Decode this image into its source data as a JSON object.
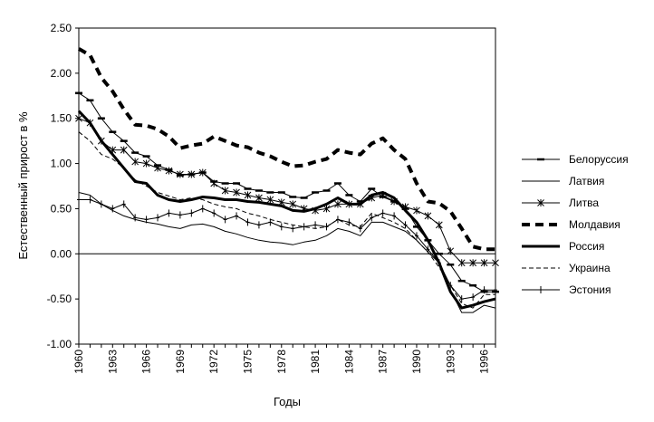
{
  "chart_data": {
    "type": "line",
    "title": "",
    "xlabel": "Годы",
    "ylabel": "Естественный прирост в %",
    "xlim": [
      1960,
      1997
    ],
    "ylim": [
      -1.0,
      2.5
    ],
    "yticks": [
      "2.50",
      "2.00",
      "1.50",
      "1.00",
      "0.50",
      "0.00",
      "-0.50",
      "-1.00"
    ],
    "xticks": [
      "1960",
      "1963",
      "1966",
      "1969",
      "1972",
      "1975",
      "1978",
      "1981",
      "1984",
      "1987",
      "1990",
      "1993",
      "1996"
    ],
    "grid": false,
    "legend_position": "right",
    "x": [
      1960,
      1961,
      1962,
      1963,
      1964,
      1965,
      1966,
      1967,
      1968,
      1969,
      1970,
      1971,
      1972,
      1973,
      1974,
      1975,
      1976,
      1977,
      1978,
      1979,
      1980,
      1981,
      1982,
      1983,
      1984,
      1985,
      1986,
      1987,
      1988,
      1989,
      1990,
      1991,
      1992,
      1993,
      1994,
      1995,
      1996,
      1997
    ],
    "series": [
      {
        "name": "Белоруссия",
        "style": "thin-dash-marker",
        "values": [
          1.78,
          1.7,
          1.5,
          1.35,
          1.25,
          1.12,
          1.08,
          0.98,
          0.93,
          0.87,
          0.88,
          0.9,
          0.8,
          0.78,
          0.78,
          0.72,
          0.7,
          0.68,
          0.68,
          0.63,
          0.62,
          0.68,
          0.7,
          0.78,
          0.65,
          0.58,
          0.72,
          0.63,
          0.58,
          0.5,
          0.3,
          0.15,
          0.0,
          -0.12,
          -0.3,
          -0.35,
          -0.42,
          -0.42
        ]
      },
      {
        "name": "Латвия",
        "style": "thin",
        "values": [
          0.68,
          0.65,
          0.55,
          0.48,
          0.42,
          0.38,
          0.35,
          0.33,
          0.3,
          0.28,
          0.32,
          0.33,
          0.3,
          0.25,
          0.22,
          0.18,
          0.15,
          0.13,
          0.12,
          0.1,
          0.13,
          0.15,
          0.2,
          0.28,
          0.25,
          0.2,
          0.35,
          0.35,
          0.3,
          0.25,
          0.15,
          0.02,
          -0.1,
          -0.4,
          -0.65,
          -0.65,
          -0.57,
          -0.6
        ]
      },
      {
        "name": "Литва",
        "style": "star-marker",
        "values": [
          1.5,
          1.45,
          1.25,
          1.15,
          1.15,
          1.02,
          1.0,
          0.95,
          0.92,
          0.88,
          0.88,
          0.9,
          0.78,
          0.7,
          0.68,
          0.65,
          0.62,
          0.6,
          0.57,
          0.55,
          0.5,
          0.48,
          0.5,
          0.55,
          0.55,
          0.55,
          0.62,
          0.65,
          0.58,
          0.52,
          0.48,
          0.42,
          0.32,
          0.03,
          -0.1,
          -0.1,
          -0.1,
          -0.1
        ]
      },
      {
        "name": "Молдавия",
        "style": "thick-dash",
        "values": [
          2.27,
          2.2,
          1.95,
          1.8,
          1.6,
          1.43,
          1.42,
          1.38,
          1.3,
          1.17,
          1.2,
          1.22,
          1.3,
          1.25,
          1.2,
          1.18,
          1.12,
          1.08,
          1.02,
          0.97,
          0.98,
          1.02,
          1.05,
          1.15,
          1.12,
          1.1,
          1.22,
          1.28,
          1.15,
          1.05,
          0.78,
          0.58,
          0.56,
          0.47,
          0.28,
          0.08,
          0.05,
          0.05
        ]
      },
      {
        "name": "Россия",
        "style": "thick",
        "values": [
          1.58,
          1.45,
          1.25,
          1.1,
          0.95,
          0.8,
          0.78,
          0.65,
          0.6,
          0.58,
          0.6,
          0.63,
          0.62,
          0.6,
          0.6,
          0.58,
          0.57,
          0.55,
          0.53,
          0.48,
          0.47,
          0.5,
          0.55,
          0.62,
          0.55,
          0.55,
          0.65,
          0.68,
          0.62,
          0.48,
          0.35,
          0.15,
          -0.1,
          -0.42,
          -0.6,
          -0.57,
          -0.53,
          -0.5
        ]
      },
      {
        "name": "Украина",
        "style": "dashed",
        "values": [
          1.35,
          1.25,
          1.1,
          1.05,
          0.95,
          0.82,
          0.75,
          0.68,
          0.64,
          0.6,
          0.62,
          0.6,
          0.55,
          0.52,
          0.5,
          0.45,
          0.42,
          0.38,
          0.35,
          0.32,
          0.3,
          0.28,
          0.3,
          0.38,
          0.32,
          0.3,
          0.45,
          0.4,
          0.35,
          0.28,
          0.15,
          0.02,
          -0.15,
          -0.35,
          -0.55,
          -0.6,
          -0.45,
          -0.45
        ]
      },
      {
        "name": "Эстония",
        "style": "thin-plus-marker",
        "values": [
          0.6,
          0.6,
          0.55,
          0.5,
          0.55,
          0.4,
          0.38,
          0.4,
          0.45,
          0.43,
          0.45,
          0.5,
          0.45,
          0.38,
          0.42,
          0.35,
          0.32,
          0.35,
          0.3,
          0.28,
          0.3,
          0.32,
          0.3,
          0.38,
          0.35,
          0.28,
          0.4,
          0.45,
          0.42,
          0.32,
          0.2,
          0.05,
          -0.1,
          -0.35,
          -0.5,
          -0.48,
          -0.4,
          -0.4
        ]
      }
    ]
  }
}
